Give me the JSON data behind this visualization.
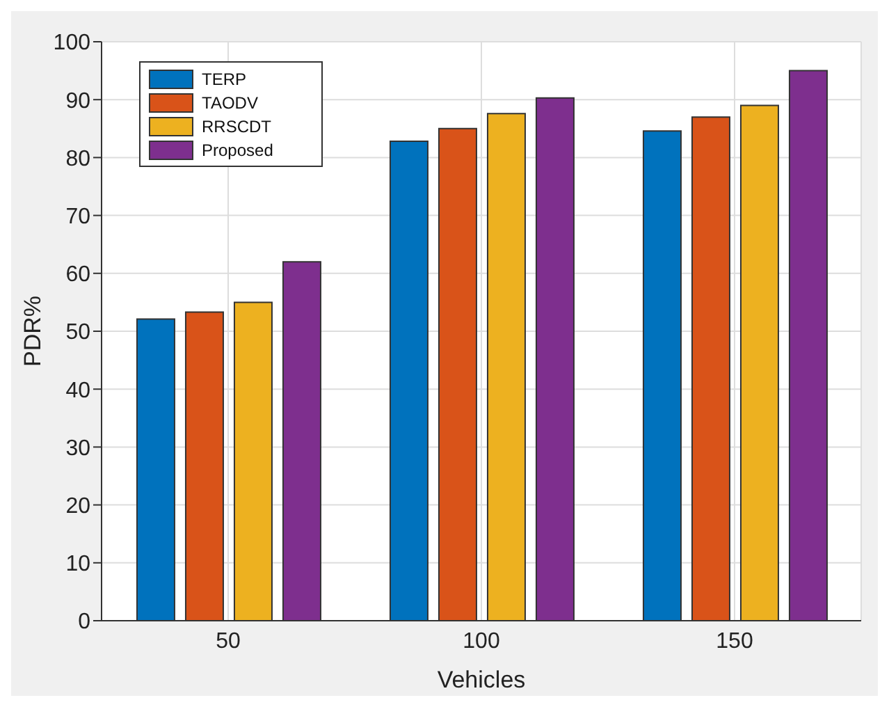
{
  "chart_data": {
    "type": "bar",
    "xlabel": "Vehicles",
    "ylabel": "PDR%",
    "categories": [
      "50",
      "100",
      "150"
    ],
    "series": [
      {
        "name": "TERP",
        "color": "#0072bd",
        "values": [
          52.1,
          82.8,
          84.6
        ]
      },
      {
        "name": "TAODV",
        "color": "#d95319",
        "values": [
          53.3,
          85,
          87
        ]
      },
      {
        "name": "RRSCDT",
        "color": "#edb120",
        "values": [
          55,
          87.6,
          89
        ]
      },
      {
        "name": "Proposed",
        "color": "#7e2f8e",
        "values": [
          62,
          90.3,
          95
        ]
      }
    ],
    "ylim": [
      0,
      100
    ],
    "yticks": [
      0,
      10,
      20,
      30,
      40,
      50,
      60,
      70,
      80,
      90,
      100
    ],
    "grid": true,
    "legend": "top left"
  }
}
